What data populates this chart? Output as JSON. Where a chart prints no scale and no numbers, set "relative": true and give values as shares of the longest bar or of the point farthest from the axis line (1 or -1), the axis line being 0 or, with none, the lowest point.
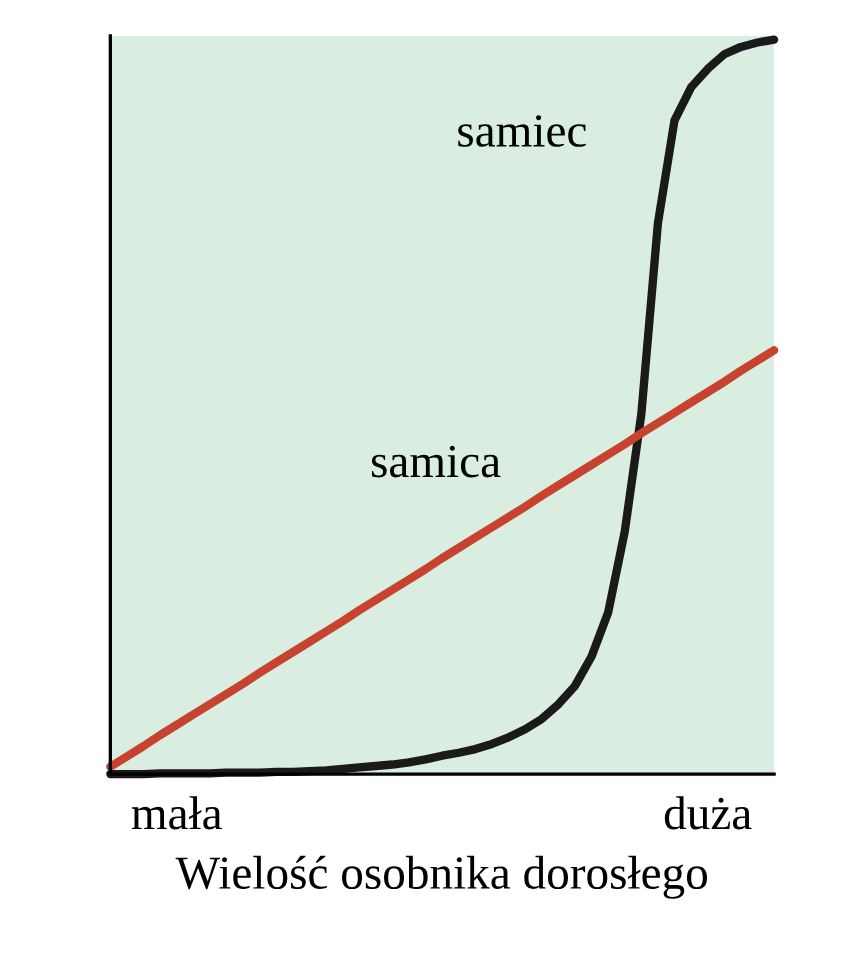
{
  "chart_data": {
    "type": "line",
    "relative": true,
    "xlabel": "Wielość osobnika dorosłego",
    "categories": [
      null,
      null,
      null,
      null,
      "mała",
      null,
      null,
      null,
      null,
      null,
      null,
      null,
      null,
      null,
      null,
      null,
      null,
      null,
      null,
      null,
      null,
      null,
      null,
      null,
      null,
      null,
      null,
      null,
      null,
      null,
      null,
      null,
      null,
      null,
      null,
      null,
      "duża",
      null,
      null,
      null,
      null
    ],
    "grid": false,
    "legend": false,
    "series": [
      {
        "name": "samiec",
        "color": "#1a1a1a",
        "values": [
          0,
          0,
          0,
          0.001,
          0.001,
          0.001,
          0.001,
          0.002,
          0.002,
          0.002,
          0.003,
          0.003,
          0.004,
          0.005,
          0.007,
          0.009,
          0.011,
          0.013,
          0.016,
          0.02,
          0.025,
          0.029,
          0.034,
          0.041,
          0.05,
          0.061,
          0.075,
          0.095,
          0.12,
          0.16,
          0.22,
          0.33,
          0.49,
          0.75,
          0.89,
          0.935,
          0.96,
          0.98,
          0.99,
          0.996,
          1.0
        ]
      },
      {
        "name": "samica",
        "color": "#c8432f",
        "values": [
          0.01,
          0.024,
          0.038,
          0.053,
          0.067,
          0.081,
          0.095,
          0.109,
          0.123,
          0.138,
          0.152,
          0.166,
          0.18,
          0.194,
          0.208,
          0.223,
          0.237,
          0.251,
          0.265,
          0.279,
          0.294,
          0.308,
          0.322,
          0.336,
          0.35,
          0.364,
          0.379,
          0.393,
          0.407,
          0.421,
          0.435,
          0.449,
          0.464,
          0.478,
          0.492,
          0.506,
          0.52,
          0.534,
          0.549,
          0.563,
          0.577
        ]
      }
    ]
  }
}
